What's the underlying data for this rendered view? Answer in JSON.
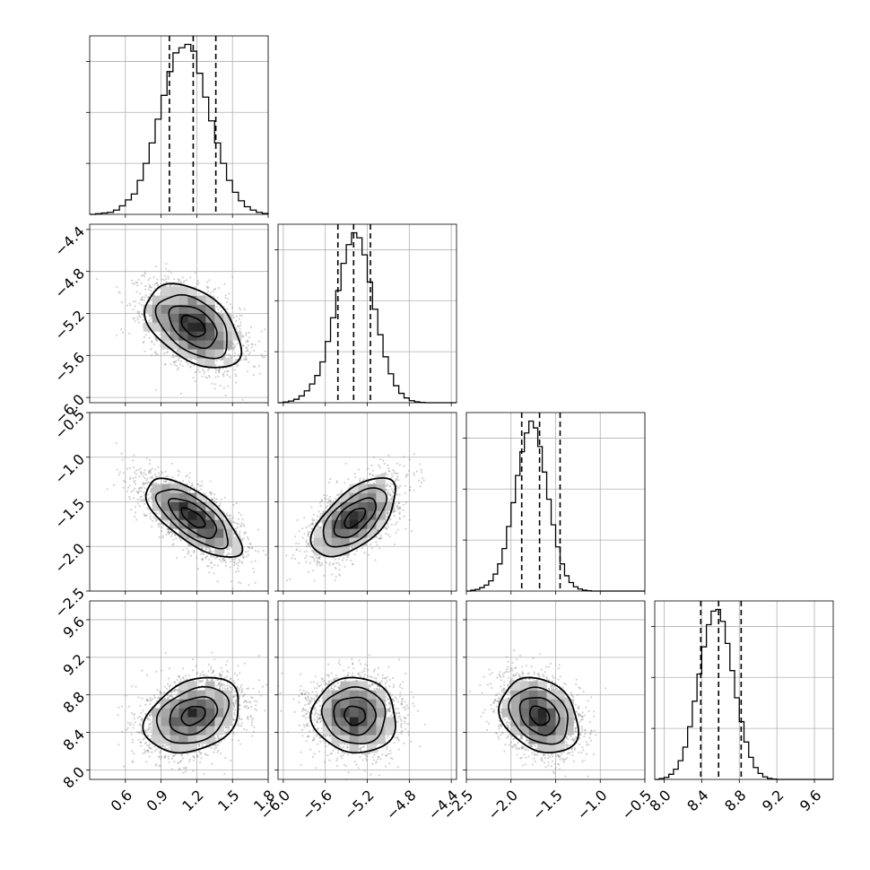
{
  "chart_data": {
    "type": "corner",
    "grid": true,
    "params": [
      {
        "range": [
          0.3,
          1.8
        ],
        "ticks": [
          "0.6",
          "0.9",
          "1.2",
          "1.5",
          "1.8"
        ],
        "tick_values": [
          0.6,
          0.9,
          1.2,
          1.5,
          1.8
        ],
        "quantiles": [
          0.97,
          1.17,
          1.36
        ],
        "hist_max": 1.0,
        "hist_ytick_fracs": [
          0.3,
          0.6,
          0.9
        ],
        "hist": {
          "edges": [
            0.3,
            0.35,
            0.4,
            0.45,
            0.5,
            0.55,
            0.6,
            0.65,
            0.7,
            0.75,
            0.8,
            0.85,
            0.9,
            0.95,
            1.0,
            1.05,
            1.1,
            1.15,
            1.2,
            1.25,
            1.3,
            1.35,
            1.4,
            1.45,
            1.5,
            1.55,
            1.6,
            1.65,
            1.7,
            1.75,
            1.8
          ],
          "counts": [
            0.0,
            0.004,
            0.008,
            0.012,
            0.025,
            0.05,
            0.085,
            0.12,
            0.2,
            0.3,
            0.42,
            0.56,
            0.7,
            0.84,
            0.95,
            0.98,
            1.0,
            0.96,
            0.83,
            0.69,
            0.55,
            0.42,
            0.3,
            0.2,
            0.13,
            0.08,
            0.045,
            0.025,
            0.012,
            0.005
          ]
        }
      },
      {
        "range": [
          -6.05,
          -4.35
        ],
        "ticks": [
          "-6.0",
          "-5.6",
          "-5.2",
          "-4.8",
          "-4.4"
        ],
        "tick_values": [
          -6.0,
          -5.6,
          -5.2,
          -4.8,
          -4.4
        ],
        "quantiles": [
          -5.48,
          -5.33,
          -5.17
        ],
        "hist_max": 1.0,
        "hist_ytick_fracs": [
          0.3,
          0.6,
          0.9
        ],
        "hist": {
          "edges": [
            -6.05,
            -6.0,
            -5.95,
            -5.9,
            -5.85,
            -5.8,
            -5.75,
            -5.7,
            -5.65,
            -5.6,
            -5.55,
            -5.5,
            -5.45,
            -5.4,
            -5.35,
            -5.3,
            -5.25,
            -5.2,
            -5.15,
            -5.1,
            -5.05,
            -5.0,
            -4.95,
            -4.9,
            -4.85,
            -4.8,
            -4.75,
            -4.7,
            -4.65,
            -4.6,
            -4.55,
            -4.5,
            -4.45,
            -4.4,
            -4.35
          ],
          "counts": [
            0.0,
            0.004,
            0.01,
            0.02,
            0.04,
            0.07,
            0.11,
            0.16,
            0.24,
            0.36,
            0.5,
            0.66,
            0.82,
            0.93,
            1.0,
            0.97,
            0.87,
            0.71,
            0.55,
            0.4,
            0.27,
            0.17,
            0.1,
            0.055,
            0.028,
            0.012,
            0.005,
            0.002,
            0.0,
            0.0,
            0.0,
            0.0,
            0.0,
            0.0
          ]
        }
      },
      {
        "range": [
          -2.5,
          -0.5
        ],
        "ticks": [
          "-2.5",
          "-2.0",
          "-1.5",
          "-1.0",
          "-0.5"
        ],
        "tick_values": [
          -2.5,
          -2.0,
          -1.5,
          -1.0,
          -0.5
        ],
        "quantiles": [
          -1.88,
          -1.68,
          -1.45
        ],
        "hist_max": 1.0,
        "hist_ytick_fracs": [
          0.3,
          0.6,
          0.9
        ],
        "hist": {
          "edges": [
            -2.5,
            -2.45,
            -2.4,
            -2.35,
            -2.3,
            -2.25,
            -2.2,
            -2.15,
            -2.1,
            -2.05,
            -2.0,
            -1.95,
            -1.9,
            -1.85,
            -1.8,
            -1.75,
            -1.7,
            -1.65,
            -1.6,
            -1.55,
            -1.5,
            -1.45,
            -1.4,
            -1.35,
            -1.3,
            -1.25,
            -1.2,
            -1.15,
            -1.1,
            -1.05,
            -1.0,
            -0.95,
            -0.9,
            -0.85,
            -0.8,
            -0.75,
            -0.7,
            -0.65,
            -0.6,
            -0.55,
            -0.5
          ],
          "counts": [
            0.0,
            0.005,
            0.01,
            0.02,
            0.035,
            0.06,
            0.1,
            0.16,
            0.25,
            0.38,
            0.52,
            0.68,
            0.82,
            0.93,
            1.0,
            0.96,
            0.85,
            0.7,
            0.54,
            0.39,
            0.26,
            0.16,
            0.09,
            0.05,
            0.025,
            0.012,
            0.005,
            0.002,
            0.0,
            0.0,
            0.0,
            0.0,
            0.0,
            0.0,
            0.0,
            0.0,
            0.0,
            0.0,
            0.0,
            0.0
          ]
        }
      },
      {
        "range": [
          7.9,
          9.8
        ],
        "ticks": [
          "8.0",
          "8.4",
          "8.8",
          "9.2",
          "9.6"
        ],
        "tick_values": [
          8.0,
          8.4,
          8.8,
          9.2,
          9.6
        ],
        "quantiles": [
          8.39,
          8.58,
          8.82
        ],
        "hist_max": 1.0,
        "hist_ytick_fracs": [
          0.3,
          0.6,
          0.9
        ],
        "hist": {
          "edges": [
            7.9,
            7.95,
            8.0,
            8.05,
            8.1,
            8.15,
            8.2,
            8.25,
            8.3,
            8.35,
            8.4,
            8.45,
            8.5,
            8.55,
            8.6,
            8.65,
            8.7,
            8.75,
            8.8,
            8.85,
            8.9,
            8.95,
            9.0,
            9.05,
            9.1,
            9.15,
            9.2,
            9.25,
            9.3,
            9.35,
            9.4,
            9.45,
            9.5,
            9.55,
            9.6,
            9.65,
            9.7,
            9.75,
            9.8
          ],
          "counts": [
            0.0,
            0.005,
            0.012,
            0.03,
            0.06,
            0.11,
            0.19,
            0.31,
            0.46,
            0.62,
            0.78,
            0.91,
            0.99,
            1.0,
            0.93,
            0.8,
            0.64,
            0.48,
            0.34,
            0.22,
            0.13,
            0.07,
            0.035,
            0.015,
            0.006,
            0.002,
            0.0,
            0.0,
            0.0,
            0.0,
            0.0,
            0.0,
            0.0,
            0.0,
            0.0,
            0.0,
            0.0,
            0.0
          ]
        }
      }
    ],
    "pairs": [
      {
        "x": 0,
        "y": 1,
        "mean": [
          1.17,
          -5.32
        ],
        "sd": [
          0.2,
          0.2
        ],
        "rho": -0.45
      },
      {
        "x": 0,
        "y": 2,
        "mean": [
          1.17,
          -1.68
        ],
        "sd": [
          0.2,
          0.22
        ],
        "rho": -0.7
      },
      {
        "x": 1,
        "y": 2,
        "mean": [
          -5.32,
          -1.68
        ],
        "sd": [
          0.2,
          0.22
        ],
        "rho": 0.6
      },
      {
        "x": 0,
        "y": 3,
        "mean": [
          1.17,
          8.58
        ],
        "sd": [
          0.2,
          0.2
        ],
        "rho": 0.3
      },
      {
        "x": 1,
        "y": 3,
        "mean": [
          -5.32,
          8.58
        ],
        "sd": [
          0.2,
          0.2
        ],
        "rho": -0.05
      },
      {
        "x": 2,
        "y": 3,
        "mean": [
          -1.68,
          8.58
        ],
        "sd": [
          0.22,
          0.2
        ],
        "rho": -0.25
      }
    ],
    "contour_levels_sigma": [
      0.5,
      1.0,
      1.5,
      2.0
    ],
    "colors": {
      "hist": "#000000",
      "contour": "#000000",
      "scatter": "#808080",
      "grid": "#b0b0b0"
    }
  }
}
